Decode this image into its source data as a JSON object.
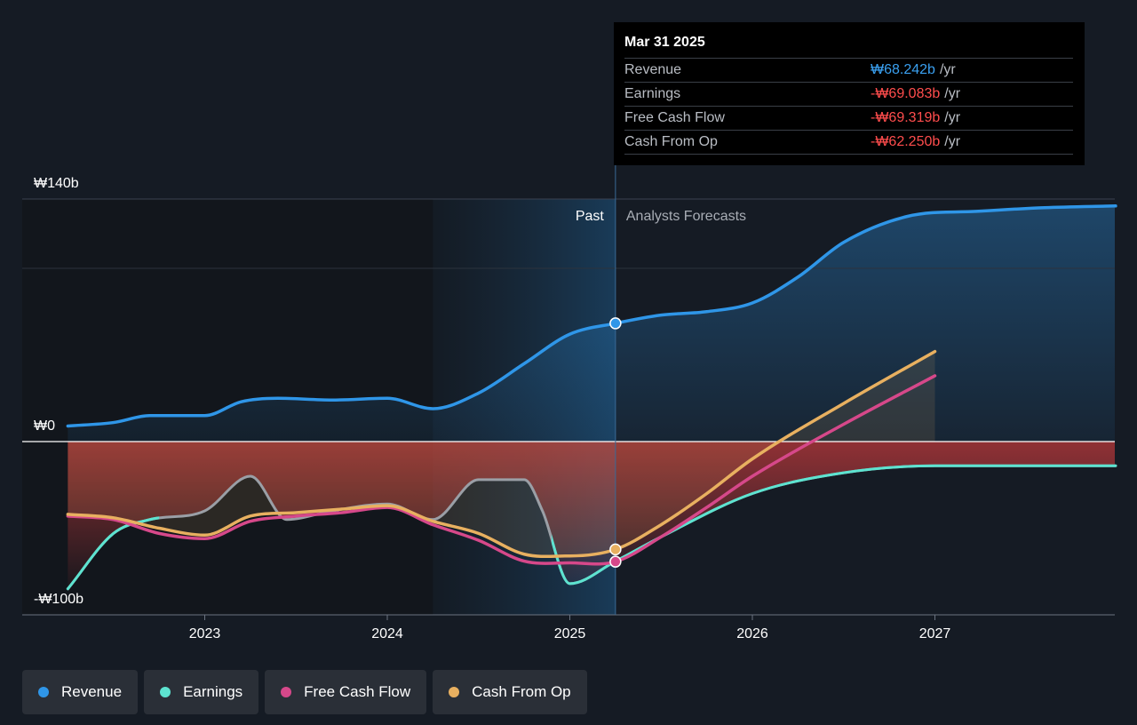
{
  "chart_data": {
    "type": "line",
    "title": "",
    "currency_unit": "₩ billions",
    "y_labels": {
      "top": "₩140b",
      "zero": "₩0",
      "bottom": "-₩100b"
    },
    "ylim": [
      -100,
      140
    ],
    "x_ticks": [
      "2023",
      "2024",
      "2025",
      "2026",
      "2027"
    ],
    "past_label": "Past",
    "forecast_label": "Analysts Forecasts",
    "divider_x": 2025.25,
    "series": [
      {
        "name": "Revenue",
        "color": "#2f96e8",
        "points": [
          [
            2022.25,
            9
          ],
          [
            2022.5,
            11
          ],
          [
            2022.7,
            15
          ],
          [
            2023.0,
            15
          ],
          [
            2023.2,
            23
          ],
          [
            2023.4,
            25
          ],
          [
            2023.7,
            24
          ],
          [
            2024.0,
            25
          ],
          [
            2024.25,
            19
          ],
          [
            2024.5,
            28
          ],
          [
            2024.75,
            45
          ],
          [
            2025.0,
            62
          ],
          [
            2025.25,
            68.242
          ],
          [
            2025.5,
            73
          ],
          [
            2025.75,
            75
          ],
          [
            2026.0,
            80
          ],
          [
            2026.25,
            95
          ],
          [
            2026.5,
            115
          ],
          [
            2026.85,
            130
          ],
          [
            2027.25,
            133
          ],
          [
            2027.6,
            135
          ],
          [
            2027.99,
            136
          ]
        ]
      },
      {
        "name": "Earnings",
        "color": "#5de3d0",
        "points": [
          [
            2022.25,
            -85
          ],
          [
            2022.5,
            -53
          ],
          [
            2022.7,
            -45
          ],
          [
            2023.0,
            -40
          ],
          [
            2023.25,
            -20
          ],
          [
            2023.45,
            -45
          ],
          [
            2023.7,
            -40
          ],
          [
            2024.0,
            -36
          ],
          [
            2024.25,
            -45
          ],
          [
            2024.5,
            -22
          ],
          [
            2024.75,
            -22
          ],
          [
            2024.85,
            -40
          ],
          [
            2025.0,
            -82
          ],
          [
            2025.25,
            -69.083
          ],
          [
            2025.5,
            -55
          ],
          [
            2026.0,
            -30
          ],
          [
            2026.5,
            -18
          ],
          [
            2027.0,
            -14
          ],
          [
            2027.99,
            -14
          ]
        ]
      },
      {
        "name": "Free Cash Flow",
        "color": "#d6488a",
        "points": [
          [
            2022.25,
            -43
          ],
          [
            2022.5,
            -45
          ],
          [
            2022.75,
            -53
          ],
          [
            2023.0,
            -56
          ],
          [
            2023.25,
            -46
          ],
          [
            2023.5,
            -43
          ],
          [
            2023.75,
            -41
          ],
          [
            2024.0,
            -38
          ],
          [
            2024.25,
            -48
          ],
          [
            2024.5,
            -57
          ],
          [
            2024.75,
            -69
          ],
          [
            2025.0,
            -70
          ],
          [
            2025.25,
            -69.319
          ],
          [
            2025.5,
            -55
          ],
          [
            2025.75,
            -38
          ],
          [
            2026.0,
            -20
          ],
          [
            2026.5,
            10
          ],
          [
            2027.0,
            38
          ]
        ]
      },
      {
        "name": "Cash From Op",
        "color": "#e8b060",
        "points": [
          [
            2022.25,
            -42
          ],
          [
            2022.5,
            -44
          ],
          [
            2022.75,
            -50
          ],
          [
            2023.0,
            -54
          ],
          [
            2023.25,
            -43
          ],
          [
            2023.5,
            -41
          ],
          [
            2023.75,
            -39
          ],
          [
            2024.0,
            -37
          ],
          [
            2024.25,
            -46
          ],
          [
            2024.5,
            -53
          ],
          [
            2024.75,
            -65
          ],
          [
            2025.0,
            -66
          ],
          [
            2025.25,
            -62.25
          ],
          [
            2025.5,
            -48
          ],
          [
            2025.75,
            -30
          ],
          [
            2026.0,
            -10
          ],
          [
            2026.5,
            22
          ],
          [
            2027.0,
            52
          ]
        ]
      }
    ],
    "tooltip": {
      "date": "Mar 31 2025",
      "unit": "/yr",
      "rows": [
        {
          "label": "Revenue",
          "value": "₩68.242b",
          "color": "#3aa0f0"
        },
        {
          "label": "Earnings",
          "value": "-₩69.083b",
          "color": "#ff4d4d"
        },
        {
          "label": "Free Cash Flow",
          "value": "-₩69.319b",
          "color": "#ff4d4d"
        },
        {
          "label": "Cash From Op",
          "value": "-₩62.250b",
          "color": "#ff4d4d"
        }
      ]
    }
  },
  "legend": [
    {
      "label": "Revenue",
      "color": "#2f96e8"
    },
    {
      "label": "Earnings",
      "color": "#5de3d0"
    },
    {
      "label": "Free Cash Flow",
      "color": "#d6488a"
    },
    {
      "label": "Cash From Op",
      "color": "#e8b060"
    }
  ]
}
